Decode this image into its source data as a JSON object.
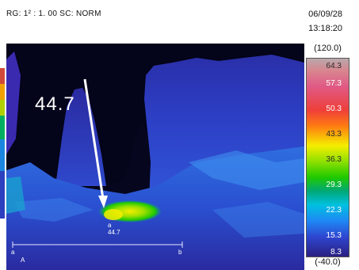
{
  "header": {
    "range_text": "RG: 1² : 1. 00  SC: NORM",
    "date": "06/09/28",
    "time": "13:18:20"
  },
  "thermal": {
    "spot_label": "44.7",
    "spot_small_marker": "a",
    "spot_small_value": "44.7",
    "line_start": "a",
    "line_end": "b",
    "area_label": "A"
  },
  "scale": {
    "max": "(120.0)",
    "min": "(-40.0)",
    "ticks": [
      "64.3",
      "57.3",
      "50.3",
      "43.3",
      "36.3",
      "29.3",
      "22.3",
      "15.3",
      "8.3"
    ],
    "colors": [
      "#d8868f",
      "#e05a86",
      "#ee3f3a",
      "#ff7b12",
      "#f5ee00",
      "#1fc900",
      "#00c0e0",
      "#1e88f4",
      "#2a1f80"
    ]
  }
}
